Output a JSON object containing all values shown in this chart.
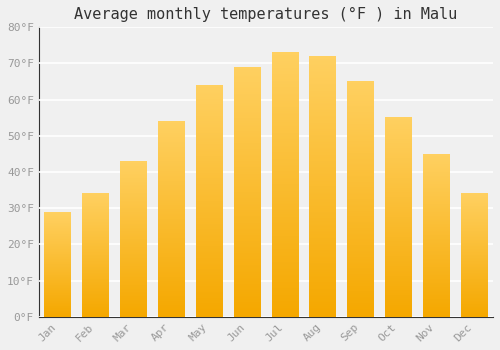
{
  "title": "Average monthly temperatures (°F ) in Malu",
  "months": [
    "Jan",
    "Feb",
    "Mar",
    "Apr",
    "May",
    "Jun",
    "Jul",
    "Aug",
    "Sep",
    "Oct",
    "Nov",
    "Dec"
  ],
  "values": [
    29,
    34,
    43,
    54,
    64,
    69,
    73,
    72,
    65,
    55,
    45,
    34
  ],
  "bar_color_bottom": "#F5A800",
  "bar_color_top": "#FFD060",
  "ylim": [
    0,
    80
  ],
  "yticks": [
    0,
    10,
    20,
    30,
    40,
    50,
    60,
    70,
    80
  ],
  "ytick_labels": [
    "0°F",
    "10°F",
    "20°F",
    "30°F",
    "40°F",
    "50°F",
    "60°F",
    "70°F",
    "80°F"
  ],
  "background_color": "#F0F0F0",
  "grid_color": "#FFFFFF",
  "title_fontsize": 11,
  "tick_fontsize": 8,
  "font_family": "monospace",
  "tick_color": "#999999",
  "n_gradient_steps": 50
}
